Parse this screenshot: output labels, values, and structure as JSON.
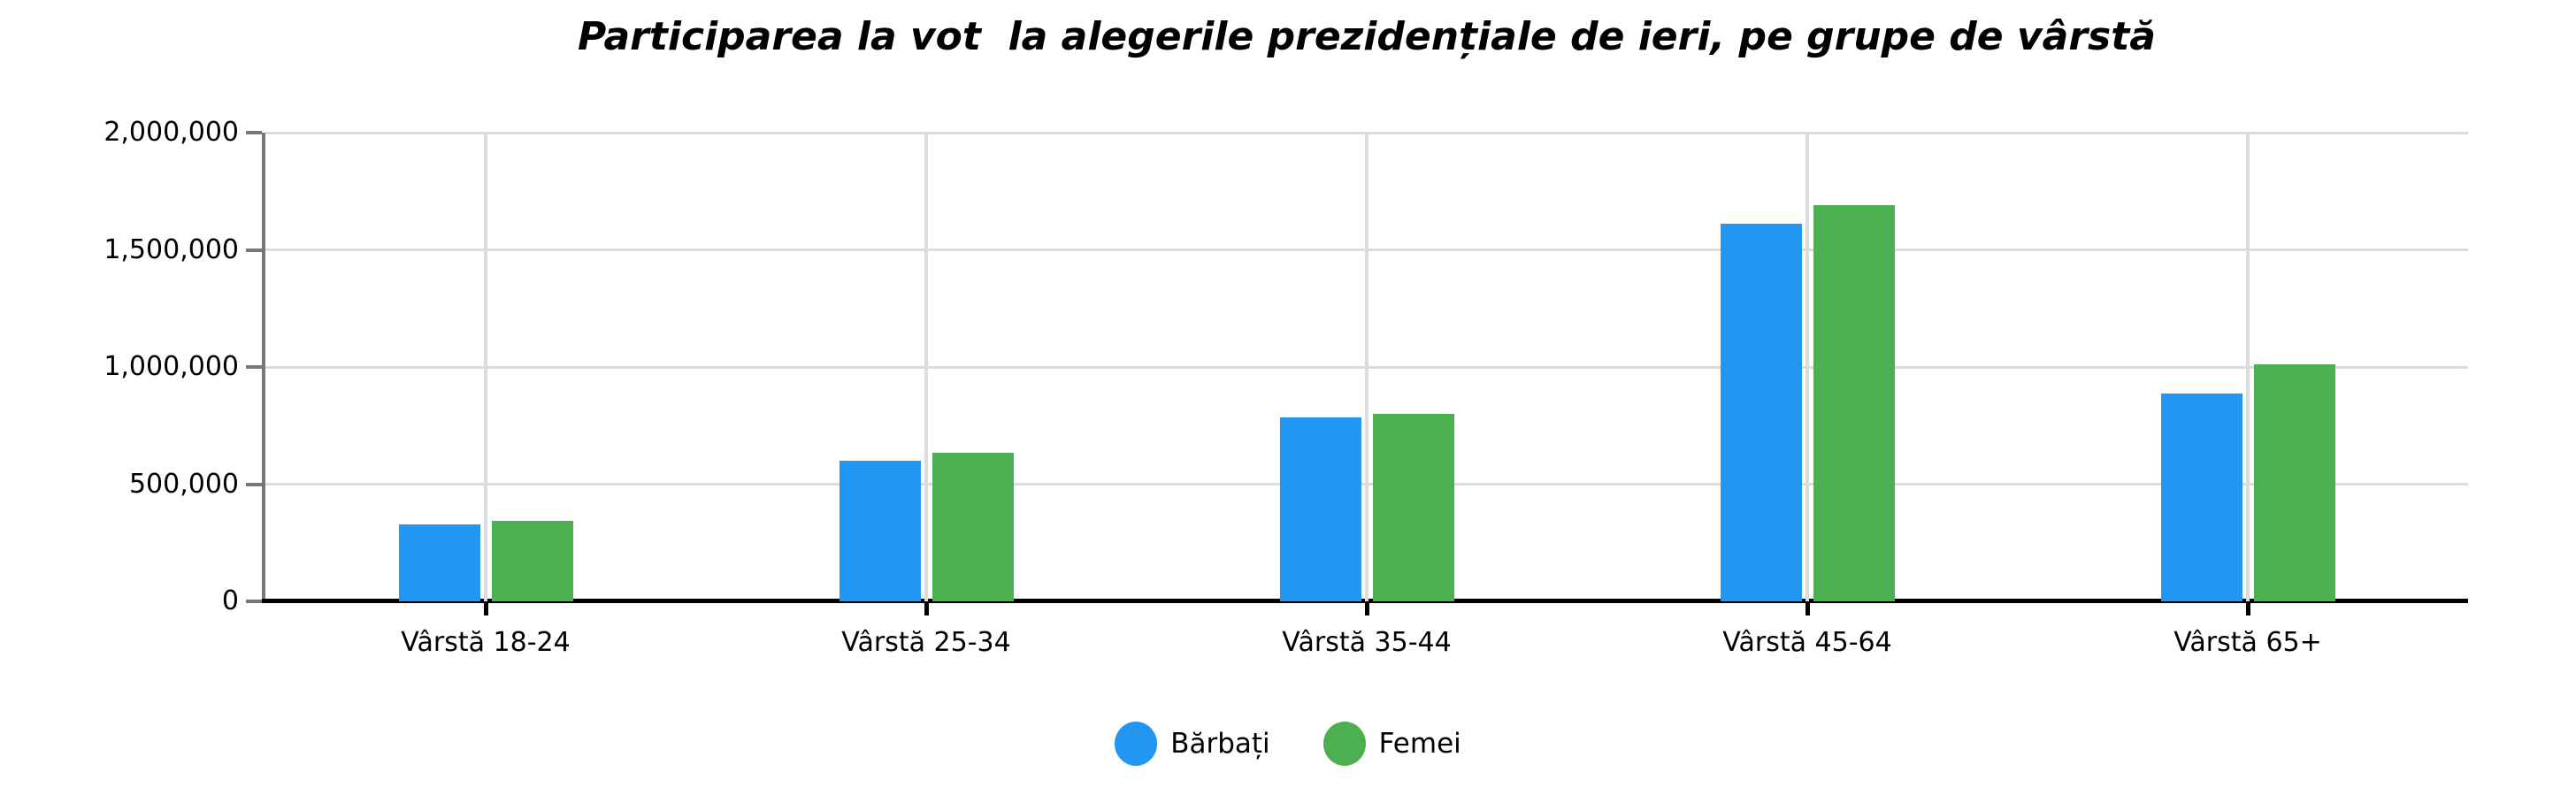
{
  "chart_data": {
    "type": "bar",
    "title": "Participarea la vot  la alegerile prezidențiale de ieri, pe grupe de vârstă",
    "categories": [
      "Vârstă 18-24",
      "Vârstă 25-34",
      "Vârstă 35-44",
      "Vârstă 45-64",
      "Vârstă 65+"
    ],
    "series": [
      {
        "name": "Bărbați",
        "color": "#2196f3",
        "values": [
          330000,
          600000,
          785000,
          1610000,
          885000
        ]
      },
      {
        "name": "Femei",
        "color": "#4caf50",
        "values": [
          345000,
          635000,
          800000,
          1690000,
          1010000
        ]
      }
    ],
    "ylim": [
      0,
      2000000
    ],
    "yticks": [
      {
        "value": 0,
        "label": "0"
      },
      {
        "value": 500000,
        "label": "500,000"
      },
      {
        "value": 1000000,
        "label": "1,000,000"
      },
      {
        "value": 1500000,
        "label": "1,500,000"
      },
      {
        "value": 2000000,
        "label": "2,000,000"
      }
    ],
    "grid": true,
    "legend_position": "bottom",
    "xlabel": "",
    "ylabel": ""
  },
  "colors": {
    "grid": "#dcdcdc",
    "y_axis": "#787878",
    "x_axis": "#000000",
    "text": "#000000",
    "background": "#ffffff"
  }
}
